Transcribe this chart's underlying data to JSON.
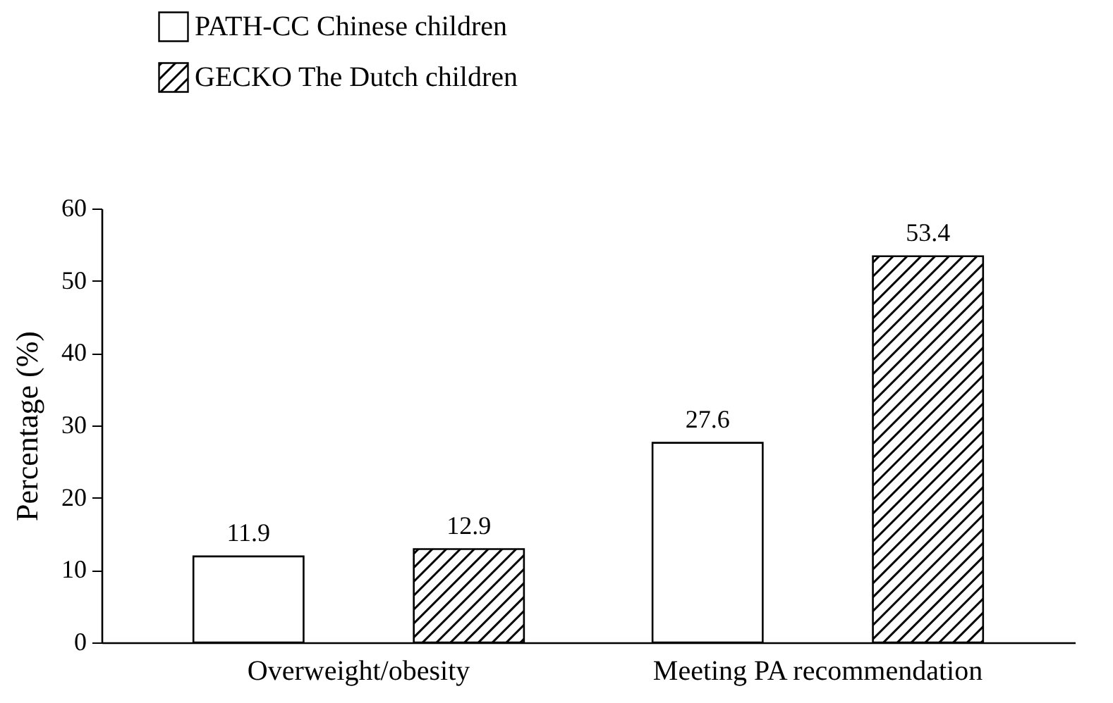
{
  "chart_data": {
    "type": "bar",
    "categories": [
      "Overweight/obesity",
      "Meeting PA recommendation"
    ],
    "ylabel": "Percentage (%)",
    "ylim": [
      0,
      60
    ],
    "yticks": [
      0,
      10,
      20,
      30,
      40,
      50,
      60
    ],
    "series": [
      {
        "name": "PATH-CC Chinese children",
        "color": "#ffffff",
        "values": [
          11.9,
          27.6
        ]
      },
      {
        "name": "GECKO The Dutch children",
        "color": "#000000",
        "values": [
          12.9,
          53.4
        ]
      }
    ],
    "data_labels": true,
    "legend": "top left",
    "grid": false
  }
}
